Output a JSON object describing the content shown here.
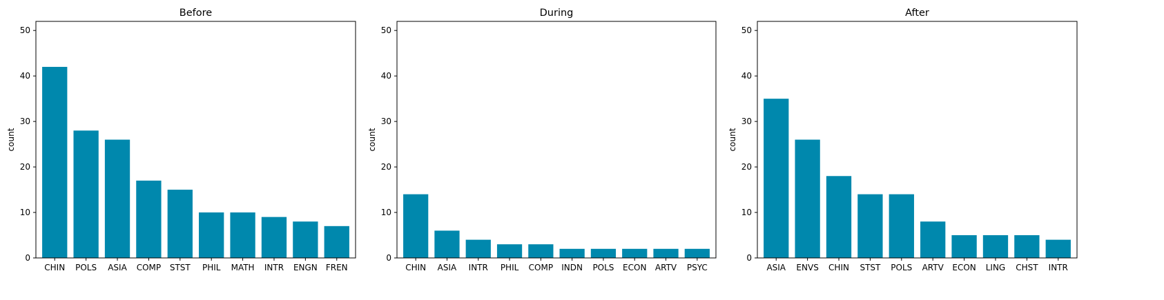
{
  "chart_data": [
    {
      "type": "bar",
      "title": "Before",
      "xlabel": "",
      "ylabel": "count",
      "ylim": [
        0,
        52
      ],
      "yticks": [
        0,
        10,
        20,
        30,
        40,
        50
      ],
      "grid": false,
      "bar_color": "#0088AD",
      "categories": [
        "CHIN",
        "POLS",
        "ASIA",
        "COMP",
        "STST",
        "PHIL",
        "MATH",
        "INTR",
        "ENGN",
        "FREN"
      ],
      "values": [
        42,
        28,
        26,
        17,
        15,
        10,
        10,
        9,
        8,
        7
      ]
    },
    {
      "type": "bar",
      "title": "During",
      "xlabel": "",
      "ylabel": "count",
      "ylim": [
        0,
        52
      ],
      "yticks": [
        0,
        10,
        20,
        30,
        40,
        50
      ],
      "grid": false,
      "bar_color": "#0088AD",
      "categories": [
        "CHIN",
        "ASIA",
        "INTR",
        "PHIL",
        "COMP",
        "INDN",
        "POLS",
        "ECON",
        "ARTV",
        "PSYC"
      ],
      "values": [
        14,
        6,
        4,
        3,
        3,
        2,
        2,
        2,
        2,
        2
      ]
    },
    {
      "type": "bar",
      "title": "After",
      "xlabel": "",
      "ylabel": "count",
      "ylim": [
        0,
        52
      ],
      "yticks": [
        0,
        10,
        20,
        30,
        40,
        50
      ],
      "grid": false,
      "bar_color": "#0088AD",
      "categories": [
        "ASIA",
        "ENVS",
        "CHIN",
        "STST",
        "POLS",
        "ARTV",
        "ECON",
        "LING",
        "CHST",
        "INTR"
      ],
      "values": [
        35,
        26,
        18,
        14,
        14,
        8,
        5,
        5,
        5,
        4
      ]
    }
  ]
}
